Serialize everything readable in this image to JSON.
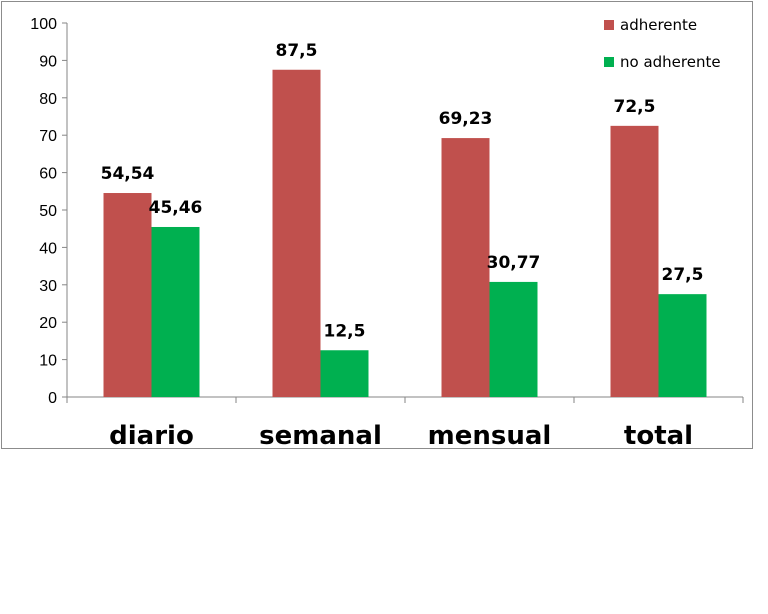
{
  "chart_data": {
    "type": "bar",
    "categories": [
      "diario",
      "semanal",
      "mensual",
      "total"
    ],
    "series": [
      {
        "name": "adherente",
        "values": [
          54.54,
          87.5,
          69.23,
          72.5
        ],
        "labels": [
          "54,54",
          "87,5",
          "69,23",
          "72,5"
        ],
        "color": "#c0504d"
      },
      {
        "name": "no adherente",
        "values": [
          45.46,
          12.5,
          30.77,
          27.5
        ],
        "labels": [
          "45,46",
          "12,5",
          "30,77",
          "27,5"
        ],
        "color": "#00b050"
      }
    ],
    "ylim": [
      0,
      100
    ],
    "yticks": [
      0,
      10,
      20,
      30,
      40,
      50,
      60,
      70,
      80,
      90,
      100
    ],
    "grid": false,
    "legend_position": "top-right",
    "title": "",
    "xlabel": "",
    "ylabel": ""
  }
}
